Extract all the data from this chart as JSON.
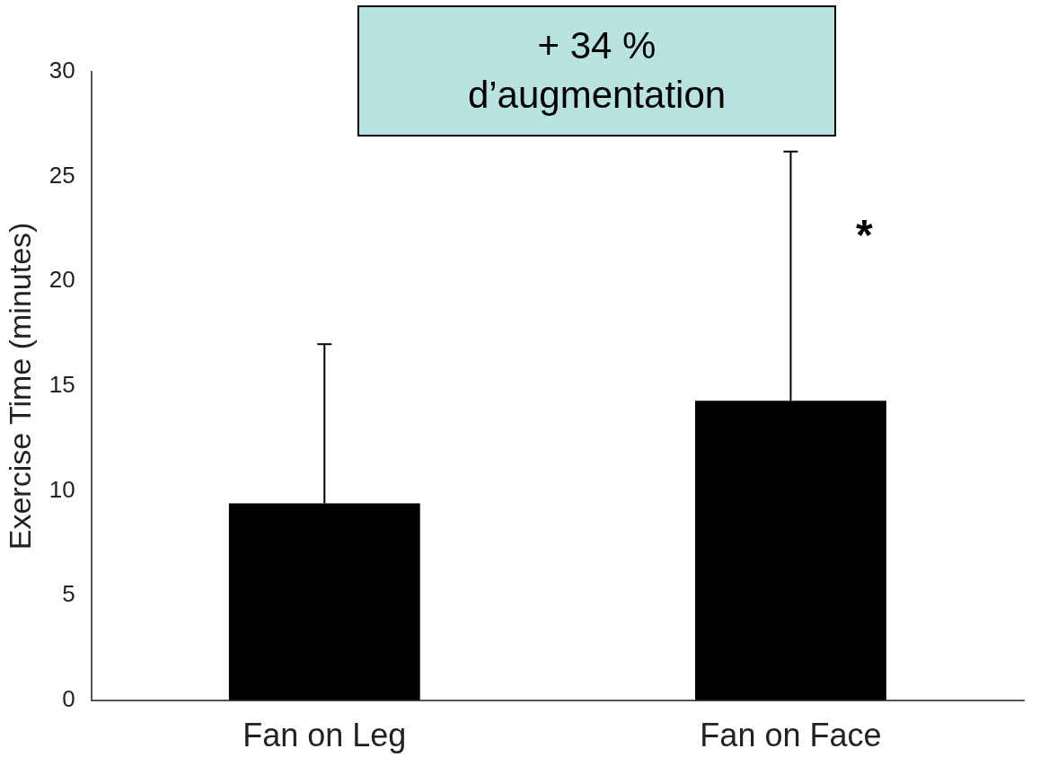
{
  "chart_data": {
    "type": "bar",
    "ylabel": "Exercise Time (minutes)",
    "categories": [
      "Fan on Leg",
      "Fan on Face"
    ],
    "values": [
      9.4,
      14.3
    ],
    "errors": [
      [
        9.4,
        17.0
      ],
      [
        14.3,
        26.2
      ]
    ],
    "color": "#000000",
    "ylim": [
      0,
      30
    ],
    "yticks": [
      0,
      5,
      10,
      15,
      20,
      25,
      30
    ],
    "grid": false,
    "legend": false,
    "annotations": [
      "+ 34 % d’augmentation",
      {
        "text": "*",
        "x": "Fan on Face",
        "y": 22.5
      }
    ]
  }
}
